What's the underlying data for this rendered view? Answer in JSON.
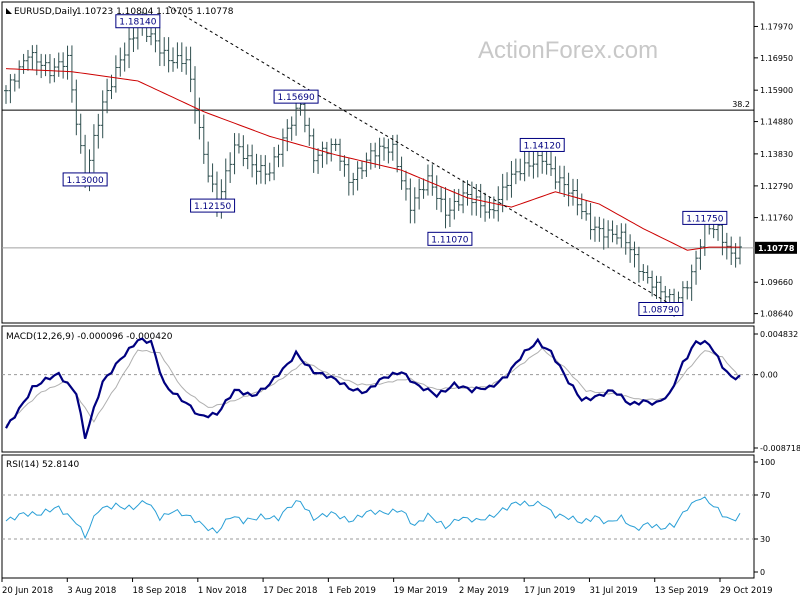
{
  "header": {
    "symbol": "EURUSD,Daily",
    "ohlc": "1.10723 1.10804 1.10705 1.10778"
  },
  "watermark": "ActionForex.com",
  "colors": {
    "price_bar": "#2f4f4f",
    "ma_line": "#cc0000",
    "trendline": "#000000",
    "macd_main": "#000080",
    "macd_signal": "#b0b0b0",
    "rsi_line": "#2a9fd6",
    "label_border": "#000080",
    "label_text": "#000080",
    "grid_dash": "#999999",
    "current_price_bg": "#000000",
    "current_price_text": "#ffffff"
  },
  "chart_data": [
    {
      "type": "line",
      "panel": "price",
      "ylim": [
        1.084,
        1.187
      ],
      "y_ticks": [
        "1.17970",
        "1.16950",
        "1.15900",
        "1.14880",
        "1.13830",
        "1.12790",
        "1.11760",
        "1.09660",
        "1.08640"
      ],
      "current_price": "1.10778",
      "fib_level": {
        "label": "38.2",
        "value": 1.1525
      },
      "annotations": [
        {
          "text": "1.18140",
          "date_index": 30,
          "value": 1.1814
        },
        {
          "text": "1.13000",
          "date_index": 18,
          "value": 1.13
        },
        {
          "text": "1.15690",
          "date_index": 66,
          "value": 1.1569
        },
        {
          "text": "1.12150",
          "date_index": 47,
          "value": 1.1215
        },
        {
          "text": "1.14120",
          "date_index": 122,
          "value": 1.1412
        },
        {
          "text": "1.11070",
          "date_index": 101,
          "value": 1.1107
        },
        {
          "text": "1.11750",
          "date_index": 159,
          "value": 1.1175
        },
        {
          "text": "1.08790",
          "date_index": 149,
          "value": 1.0879
        }
      ],
      "trendline": {
        "from": {
          "date_index": 37,
          "value": 1.1862
        },
        "to": {
          "date_index": 153,
          "value": 1.0879
        }
      },
      "close_anchors": [
        [
          0,
          1.158
        ],
        [
          5,
          1.172
        ],
        [
          10,
          1.164
        ],
        [
          14,
          1.17
        ],
        [
          18,
          1.13
        ],
        [
          22,
          1.154
        ],
        [
          26,
          1.17
        ],
        [
          30,
          1.179
        ],
        [
          33,
          1.176
        ],
        [
          37,
          1.17
        ],
        [
          41,
          1.168
        ],
        [
          45,
          1.138
        ],
        [
          48,
          1.123
        ],
        [
          52,
          1.14
        ],
        [
          56,
          1.135
        ],
        [
          60,
          1.133
        ],
        [
          64,
          1.145
        ],
        [
          67,
          1.155
        ],
        [
          70,
          1.138
        ],
        [
          75,
          1.14
        ],
        [
          78,
          1.13
        ],
        [
          83,
          1.138
        ],
        [
          88,
          1.14
        ],
        [
          92,
          1.122
        ],
        [
          96,
          1.129
        ],
        [
          100,
          1.12
        ],
        [
          104,
          1.125
        ],
        [
          110,
          1.119
        ],
        [
          114,
          1.13
        ],
        [
          118,
          1.133
        ],
        [
          122,
          1.138
        ],
        [
          125,
          1.131
        ],
        [
          129,
          1.124
        ],
        [
          133,
          1.116
        ],
        [
          137,
          1.112
        ],
        [
          141,
          1.11
        ],
        [
          145,
          1.1
        ],
        [
          149,
          1.093
        ],
        [
          152,
          1.089
        ],
        [
          156,
          1.1
        ],
        [
          159,
          1.114
        ],
        [
          162,
          1.113
        ],
        [
          165,
          1.106
        ],
        [
          167,
          1.1078
        ]
      ],
      "ma_anchors": [
        [
          0,
          1.166
        ],
        [
          15,
          1.165
        ],
        [
          30,
          1.162
        ],
        [
          45,
          1.152
        ],
        [
          60,
          1.144
        ],
        [
          75,
          1.138
        ],
        [
          90,
          1.133
        ],
        [
          105,
          1.124
        ],
        [
          115,
          1.121
        ],
        [
          125,
          1.126
        ],
        [
          135,
          1.122
        ],
        [
          145,
          1.114
        ],
        [
          155,
          1.107
        ],
        [
          160,
          1.108
        ],
        [
          167,
          1.108
        ]
      ]
    },
    {
      "type": "line",
      "panel": "macd",
      "label": "MACD(12,26,9) -0.000096 -0.000420",
      "ylim": [
        -0.008718,
        0.004832
      ],
      "y_ticks": [
        "0.004832",
        "0.00",
        "-0.008718"
      ],
      "series": [
        {
          "name": "MACD",
          "anchors": [
            [
              0,
              -0.0065
            ],
            [
              6,
              -0.0015
            ],
            [
              12,
              0.0
            ],
            [
              16,
              -0.002
            ],
            [
              18,
              -0.0075
            ],
            [
              22,
              -0.001
            ],
            [
              26,
              0.002
            ],
            [
              30,
              0.004
            ],
            [
              33,
              0.0038
            ],
            [
              36,
              -0.001
            ],
            [
              40,
              -0.003
            ],
            [
              44,
              -0.005
            ],
            [
              48,
              -0.0045
            ],
            [
              52,
              -0.002
            ],
            [
              56,
              -0.0025
            ],
            [
              60,
              -0.001
            ],
            [
              64,
              0.001
            ],
            [
              66,
              0.0025
            ],
            [
              70,
              0.0005
            ],
            [
              74,
              -0.0005
            ],
            [
              78,
              -0.0015
            ],
            [
              82,
              -0.002
            ],
            [
              86,
              -0.0005
            ],
            [
              90,
              0.0005
            ],
            [
              94,
              -0.0015
            ],
            [
              98,
              -0.0025
            ],
            [
              102,
              -0.001
            ],
            [
              106,
              -0.002
            ],
            [
              110,
              -0.0015
            ],
            [
              114,
              0.0
            ],
            [
              118,
              0.0025
            ],
            [
              121,
              0.004
            ],
            [
              124,
              0.0028
            ],
            [
              128,
              -0.001
            ],
            [
              131,
              -0.003
            ],
            [
              134,
              -0.0025
            ],
            [
              138,
              -0.002
            ],
            [
              142,
              -0.0035
            ],
            [
              145,
              -0.003
            ],
            [
              148,
              -0.0035
            ],
            [
              151,
              -0.0025
            ],
            [
              154,
              0.0015
            ],
            [
              157,
              0.004
            ],
            [
              160,
              0.0035
            ],
            [
              163,
              0.001
            ],
            [
              165,
              -0.0002
            ],
            [
              167,
              -0.0001
            ]
          ]
        },
        {
          "name": "Signal",
          "anchors": [
            [
              0,
              -0.006
            ],
            [
              8,
              -0.002
            ],
            [
              14,
              -0.0008
            ],
            [
              20,
              -0.0055
            ],
            [
              25,
              -0.0015
            ],
            [
              30,
              0.003
            ],
            [
              35,
              0.0025
            ],
            [
              40,
              -0.0015
            ],
            [
              46,
              -0.004
            ],
            [
              52,
              -0.003
            ],
            [
              58,
              -0.002
            ],
            [
              64,
              0.0
            ],
            [
              68,
              0.0015
            ],
            [
              74,
              0.0
            ],
            [
              80,
              -0.0012
            ],
            [
              86,
              -0.001
            ],
            [
              92,
              -0.0005
            ],
            [
              98,
              -0.0018
            ],
            [
              104,
              -0.0015
            ],
            [
              110,
              -0.0015
            ],
            [
              116,
              0.0008
            ],
            [
              122,
              0.003
            ],
            [
              127,
              0.001
            ],
            [
              132,
              -0.002
            ],
            [
              138,
              -0.0022
            ],
            [
              144,
              -0.003
            ],
            [
              150,
              -0.0028
            ],
            [
              155,
              0.0005
            ],
            [
              159,
              0.003
            ],
            [
              163,
              0.002
            ],
            [
              167,
              -0.0004
            ]
          ]
        }
      ]
    },
    {
      "type": "line",
      "panel": "rsi",
      "label": "RSI(14) 52.8140",
      "ylim": [
        0,
        100
      ],
      "y_ticks": [
        "100",
        "70",
        "30",
        "0"
      ],
      "levels": [
        70,
        30
      ],
      "series": [
        {
          "name": "RSI",
          "anchors": [
            [
              0,
              45
            ],
            [
              4,
              55
            ],
            [
              8,
              52
            ],
            [
              12,
              58
            ],
            [
              16,
              47
            ],
            [
              18,
              32
            ],
            [
              21,
              55
            ],
            [
              25,
              62
            ],
            [
              29,
              58
            ],
            [
              32,
              63
            ],
            [
              35,
              50
            ],
            [
              38,
              57
            ],
            [
              42,
              48
            ],
            [
              45,
              42
            ],
            [
              48,
              38
            ],
            [
              51,
              50
            ],
            [
              54,
              45
            ],
            [
              58,
              52
            ],
            [
              62,
              48
            ],
            [
              65,
              60
            ],
            [
              67,
              65
            ],
            [
              70,
              50
            ],
            [
              74,
              52
            ],
            [
              78,
              47
            ],
            [
              82,
              55
            ],
            [
              86,
              52
            ],
            [
              90,
              58
            ],
            [
              93,
              42
            ],
            [
              96,
              50
            ],
            [
              100,
              42
            ],
            [
              103,
              50
            ],
            [
              107,
              45
            ],
            [
              110,
              50
            ],
            [
              113,
              58
            ],
            [
              116,
              62
            ],
            [
              119,
              60
            ],
            [
              122,
              64
            ],
            [
              125,
              52
            ],
            [
              128,
              48
            ],
            [
              131,
              45
            ],
            [
              134,
              52
            ],
            [
              137,
              44
            ],
            [
              140,
              48
            ],
            [
              143,
              40
            ],
            [
              146,
              45
            ],
            [
              149,
              38
            ],
            [
              152,
              42
            ],
            [
              155,
              60
            ],
            [
              158,
              68
            ],
            [
              160,
              62
            ],
            [
              163,
              52
            ],
            [
              165,
              48
            ],
            [
              167,
              53
            ]
          ]
        }
      ]
    }
  ],
  "x_axis": {
    "labels": [
      "20 Jun 2018",
      "3 Aug 2018",
      "18 Sep 2018",
      "1 Nov 2018",
      "17 Dec 2018",
      "1 Feb 2019",
      "19 Mar 2019",
      "2 May 2019",
      "17 Jun 2019",
      "31 Jul 2019",
      "13 Sep 2019",
      "29 Oct 2019"
    ]
  }
}
